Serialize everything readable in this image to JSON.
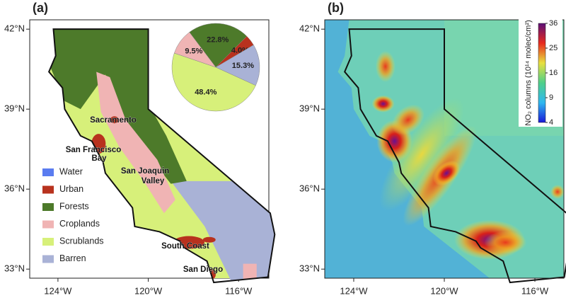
{
  "panel_a": {
    "label": "(a)",
    "xlim": [
      -125.25,
      -114.66
    ],
    "ylim": [
      32.66,
      42.35
    ],
    "xticks": [
      {
        "value": -124,
        "label": "124°W"
      },
      {
        "value": -120,
        "label": "120°W"
      },
      {
        "value": -116,
        "label": "116°W"
      }
    ],
    "yticks": [
      {
        "value": 42,
        "label": "42°N"
      },
      {
        "value": 39,
        "label": "39°N"
      },
      {
        "value": 36,
        "label": "36°N"
      },
      {
        "value": 33,
        "label": "33°N"
      }
    ],
    "legend": [
      {
        "name": "Water",
        "color": "#5a7cf0"
      },
      {
        "name": "Urban",
        "color": "#b8321e"
      },
      {
        "name": "Forests",
        "color": "#4d7a2a"
      },
      {
        "name": "Croplands",
        "color": "#f0b4b4"
      },
      {
        "name": "Scrublands",
        "color": "#d7f07a"
      },
      {
        "name": "Barren",
        "color": "#a9b2d6"
      }
    ],
    "places": [
      "Sacramento",
      "San Francisco",
      "Bay",
      "San Joaquin",
      "Valley",
      "South Coast",
      "San Diego"
    ]
  },
  "chart_data": {
    "type": "pie",
    "categories": [
      "Forests",
      "Urban",
      "Barren",
      "Scrublands",
      "Croplands"
    ],
    "values": [
      22.8,
      4.0,
      15.3,
      48.4,
      9.5
    ],
    "value_labels": [
      "22.8%",
      "4.0%",
      "15.3%",
      "48.4%",
      "9.5%"
    ],
    "colors": [
      "#4d7a2a",
      "#b8321e",
      "#a9b2d6",
      "#d7f07a",
      "#f0b4b4"
    ]
  },
  "panel_b": {
    "label": "(b)",
    "xlim": [
      -125.28,
      -114.72
    ],
    "ylim": [
      32.66,
      42.35
    ],
    "xticks": [
      {
        "value": -124,
        "label": "124°W"
      },
      {
        "value": -120,
        "label": "120°W"
      },
      {
        "value": -116,
        "label": "116°W"
      }
    ],
    "yticks": [
      {
        "value": 42,
        "label": "42°N"
      },
      {
        "value": 39,
        "label": "39°N"
      },
      {
        "value": 36,
        "label": "36°N"
      },
      {
        "value": 33,
        "label": "33°N"
      }
    ],
    "colorbar": {
      "title": "NO₂ columns (10¹⁴ molec/cm²)",
      "lim": [
        4,
        36
      ],
      "scale": "sqrt",
      "ticks": [
        4,
        9,
        16,
        25,
        36
      ]
    }
  }
}
